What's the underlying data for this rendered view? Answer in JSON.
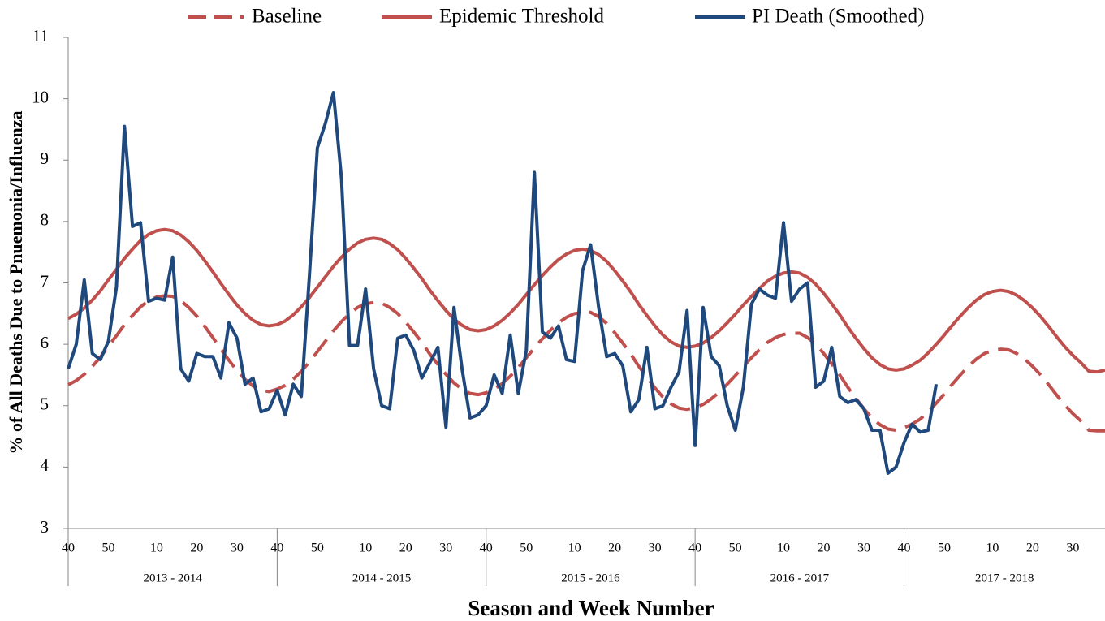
{
  "chart_data": {
    "type": "line",
    "xlabel": "Season and Week Number",
    "ylabel": "% of All Deaths Due to Pnuemonia/Influenza",
    "xlim": [
      0,
      258
    ],
    "ylim": [
      3,
      11
    ],
    "yticks": [
      3,
      4,
      5,
      6,
      7,
      8,
      9,
      10,
      11
    ],
    "xticks": [
      {
        "value": 0,
        "label": "40"
      },
      {
        "value": 10,
        "label": "50"
      },
      {
        "value": 22,
        "label": "10"
      },
      {
        "value": 32,
        "label": "20"
      },
      {
        "value": 42,
        "label": "30"
      },
      {
        "value": 52,
        "label": "40"
      },
      {
        "value": 62,
        "label": "50"
      },
      {
        "value": 74,
        "label": "10"
      },
      {
        "value": 84,
        "label": "20"
      },
      {
        "value": 94,
        "label": "30"
      },
      {
        "value": 104,
        "label": "40"
      },
      {
        "value": 114,
        "label": "50"
      },
      {
        "value": 126,
        "label": "10"
      },
      {
        "value": 136,
        "label": "20"
      },
      {
        "value": 146,
        "label": "30"
      },
      {
        "value": 156,
        "label": "40"
      },
      {
        "value": 166,
        "label": "50"
      },
      {
        "value": 178,
        "label": "10"
      },
      {
        "value": 188,
        "label": "20"
      },
      {
        "value": 198,
        "label": "30"
      },
      {
        "value": 208,
        "label": "40"
      },
      {
        "value": 218,
        "label": "50"
      },
      {
        "value": 230,
        "label": "10"
      },
      {
        "value": 240,
        "label": "20"
      },
      {
        "value": 250,
        "label": "30"
      }
    ],
    "seasons": [
      "2013 - 2014",
      "2014 - 2015",
      "2015 - 2016",
      "2016 - 2017",
      "2017 - 2018"
    ],
    "legend": "top",
    "x": [
      0,
      2,
      4,
      6,
      8,
      10,
      12,
      14,
      16,
      18,
      20,
      22,
      24,
      26,
      28,
      30,
      32,
      34,
      36,
      38,
      40,
      42,
      44,
      46,
      48,
      50,
      52,
      54,
      56,
      58,
      60,
      62,
      64,
      66,
      68,
      70,
      72,
      74,
      76,
      78,
      80,
      82,
      84,
      86,
      88,
      90,
      92,
      94,
      96,
      98,
      100,
      102,
      104,
      106,
      108,
      110,
      112,
      114,
      116,
      118,
      120,
      122,
      124,
      126,
      128,
      130,
      132,
      134,
      136,
      138,
      140,
      142,
      144,
      146,
      148,
      150,
      152,
      154,
      156,
      158,
      160,
      162,
      164,
      166,
      168,
      170,
      172,
      174,
      176,
      178,
      180,
      182,
      184,
      186,
      188,
      190,
      192,
      194,
      196,
      198,
      200,
      202,
      204,
      206,
      208,
      210,
      212,
      214,
      216,
      218,
      220,
      222,
      224,
      226,
      228,
      230,
      232,
      234,
      236,
      238,
      240,
      242,
      244,
      246,
      248,
      250,
      252,
      254,
      256,
      258
    ],
    "series": [
      {
        "name": "Baseline",
        "color": "#c0504d",
        "style": "dashed",
        "values": [
          5.34,
          5.41,
          5.51,
          5.64,
          5.79,
          5.97,
          6.14,
          6.32,
          6.47,
          6.61,
          6.71,
          6.77,
          6.79,
          6.78,
          6.71,
          6.6,
          6.46,
          6.29,
          6.11,
          5.92,
          5.74,
          5.57,
          5.43,
          5.32,
          5.25,
          5.23,
          5.27,
          5.33,
          5.43,
          5.56,
          5.71,
          5.88,
          6.05,
          6.22,
          6.37,
          6.5,
          6.6,
          6.66,
          6.68,
          6.67,
          6.6,
          6.5,
          6.36,
          6.2,
          6.03,
          5.84,
          5.67,
          5.51,
          5.37,
          5.27,
          5.2,
          5.18,
          5.21,
          5.27,
          5.36,
          5.48,
          5.62,
          5.78,
          5.94,
          6.09,
          6.23,
          6.35,
          6.44,
          6.5,
          6.52,
          6.52,
          6.45,
          6.34,
          6.19,
          6.02,
          5.84,
          5.64,
          5.46,
          5.29,
          5.14,
          5.03,
          4.96,
          4.94,
          4.97,
          5.02,
          5.11,
          5.22,
          5.35,
          5.49,
          5.64,
          5.78,
          5.91,
          6.03,
          6.11,
          6.16,
          6.18,
          6.18,
          6.11,
          6.0,
          5.85,
          5.68,
          5.5,
          5.3,
          5.12,
          4.95,
          4.8,
          4.69,
          4.62,
          4.6,
          4.64,
          4.7,
          4.78,
          4.9,
          5.04,
          5.19,
          5.35,
          5.5,
          5.64,
          5.76,
          5.85,
          5.9,
          5.92,
          5.91,
          5.85,
          5.76,
          5.64,
          5.5,
          5.34,
          5.17,
          5.01,
          4.87,
          4.75,
          4.6,
          4.59,
          4.59
        ]
      },
      {
        "name": "Epidemic Threshold",
        "color": "#c0504d",
        "style": "solid",
        "values": [
          6.42,
          6.49,
          6.59,
          6.72,
          6.87,
          7.05,
          7.22,
          7.4,
          7.55,
          7.69,
          7.79,
          7.85,
          7.87,
          7.85,
          7.78,
          7.67,
          7.53,
          7.36,
          7.18,
          6.99,
          6.81,
          6.64,
          6.5,
          6.39,
          6.32,
          6.3,
          6.32,
          6.38,
          6.48,
          6.61,
          6.76,
          6.93,
          7.1,
          7.27,
          7.42,
          7.55,
          7.65,
          7.71,
          7.73,
          7.71,
          7.64,
          7.54,
          7.4,
          7.24,
          7.07,
          6.88,
          6.71,
          6.55,
          6.41,
          6.31,
          6.24,
          6.22,
          6.24,
          6.3,
          6.39,
          6.51,
          6.65,
          6.81,
          6.97,
          7.12,
          7.26,
          7.38,
          7.47,
          7.53,
          7.55,
          7.53,
          7.46,
          7.35,
          7.2,
          7.03,
          6.85,
          6.65,
          6.47,
          6.3,
          6.15,
          6.04,
          5.97,
          5.95,
          5.97,
          6.02,
          6.11,
          6.22,
          6.35,
          6.49,
          6.64,
          6.78,
          6.91,
          7.03,
          7.11,
          7.16,
          7.18,
          7.16,
          7.09,
          6.98,
          6.83,
          6.66,
          6.48,
          6.28,
          6.1,
          5.93,
          5.78,
          5.67,
          5.6,
          5.58,
          5.6,
          5.66,
          5.74,
          5.86,
          6.0,
          6.15,
          6.31,
          6.46,
          6.6,
          6.72,
          6.81,
          6.86,
          6.88,
          6.86,
          6.8,
          6.71,
          6.59,
          6.45,
          6.29,
          6.12,
          5.96,
          5.82,
          5.7,
          5.56,
          5.55,
          5.58
        ]
      },
      {
        "name": "PI Death (Smoothed)",
        "color": "#1f497d",
        "style": "solid",
        "values": [
          5.6,
          6.0,
          7.05,
          5.85,
          5.75,
          6.05,
          6.93,
          9.55,
          7.92,
          7.98,
          6.7,
          6.75,
          6.72,
          7.42,
          5.6,
          5.4,
          5.85,
          5.8,
          5.8,
          5.45,
          6.35,
          6.1,
          5.35,
          5.45,
          4.9,
          4.95,
          5.25,
          4.85,
          5.35,
          5.15,
          7.1,
          9.2,
          9.6,
          10.1,
          8.7,
          5.98,
          5.98,
          6.9,
          5.6,
          5.0,
          4.95,
          6.1,
          6.15,
          5.9,
          5.45,
          5.7,
          5.95,
          4.65,
          6.6,
          5.6,
          4.8,
          4.85,
          5.0,
          5.5,
          5.2,
          6.15,
          5.2,
          5.9,
          8.8,
          6.2,
          6.1,
          6.3,
          5.75,
          5.72,
          7.2,
          7.62,
          6.6,
          5.8,
          5.85,
          5.65,
          4.9,
          5.1,
          5.95,
          4.95,
          5.0,
          5.3,
          5.55,
          6.55,
          4.35,
          6.6,
          5.8,
          5.65,
          5.0,
          4.6,
          5.3,
          6.65,
          6.9,
          6.8,
          6.75,
          7.98,
          6.7,
          6.9,
          7.0,
          5.3,
          5.4,
          5.95,
          5.15,
          5.05,
          5.1,
          4.95,
          4.6,
          4.6,
          3.9,
          4.0,
          4.4,
          4.7,
          4.57,
          4.6,
          5.35,
          null,
          null,
          null,
          null,
          null,
          null,
          null,
          null,
          null,
          null,
          null,
          null,
          null,
          null,
          null,
          null,
          null,
          null,
          null,
          null,
          null
        ]
      }
    ]
  }
}
